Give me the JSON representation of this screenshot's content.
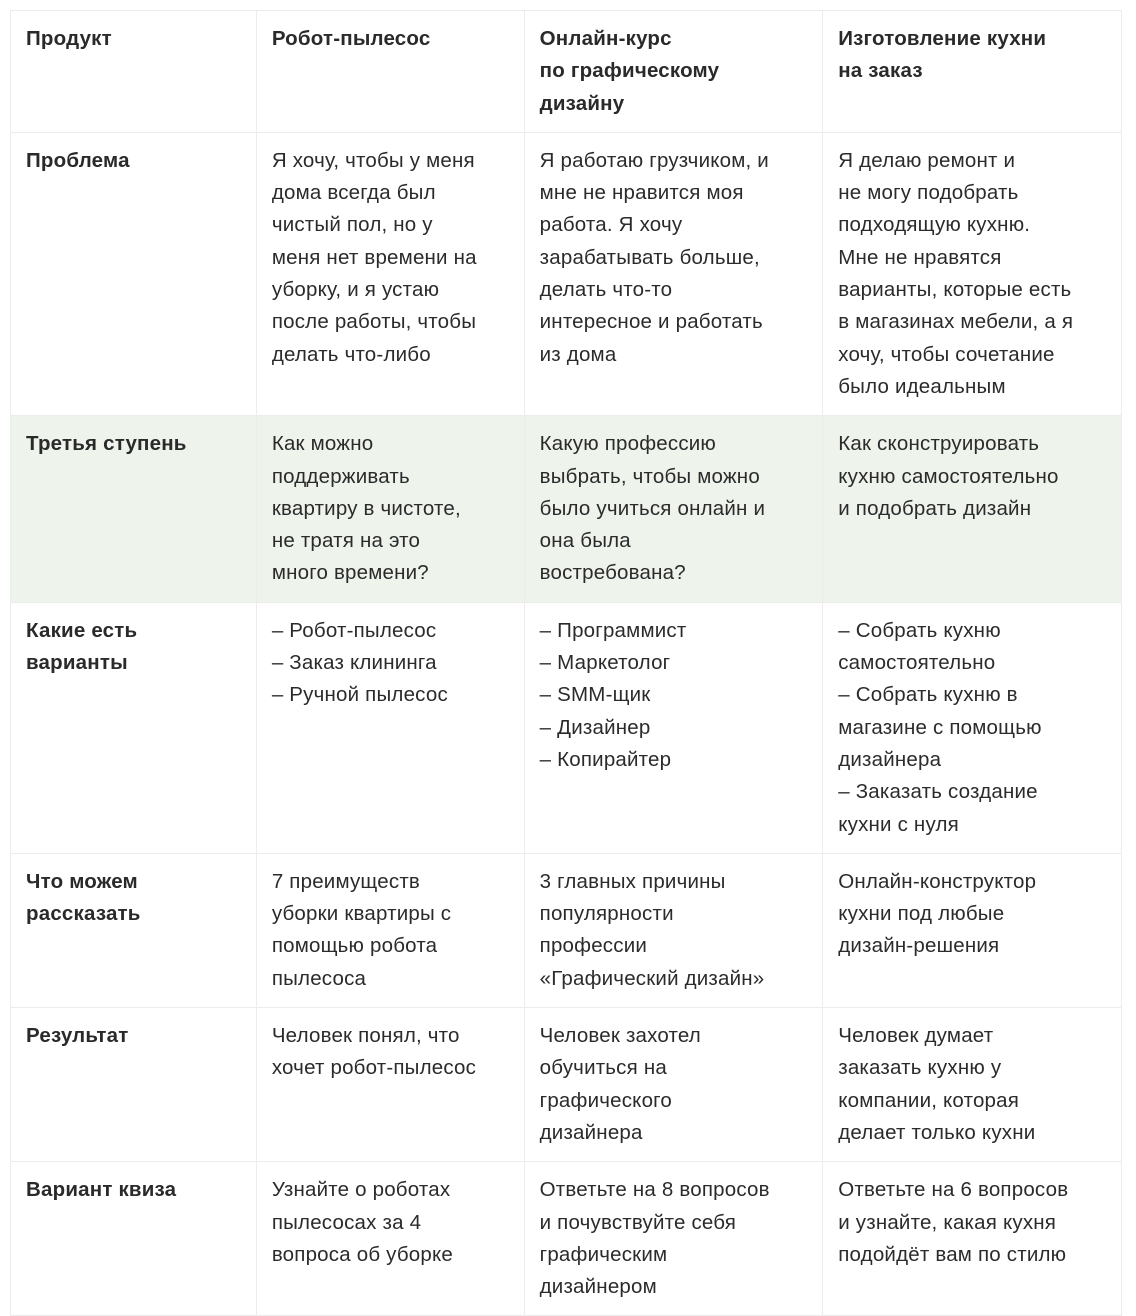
{
  "header": [
    "Продукт",
    "Робот-пылесос",
    "Онлайн-курс\nпо графическому\nдизайну",
    "Изготовление кухни\nна заказ"
  ],
  "rows": [
    {
      "label": "Проблема",
      "cells": [
        "Я хочу, чтобы у меня\nдома всегда был\nчистый пол, но у\nменя нет времени на\nуборку, и я устаю\nпосле работы, чтобы\nделать что-либо",
        "Я работаю грузчиком, и\nмне не нравится моя\nработа. Я хочу\nзарабатывать больше,\nделать что-то\nинтересное и работать\nиз дома",
        "Я делаю ремонт и\nне могу подобрать\nподходящую кухню.\nМне не нравятся\nварианты, которые есть\nв магазинах мебели, а я\nхочу, чтобы сочетание\nбыло идеальным"
      ]
    },
    {
      "label": "Третья ступень",
      "highlight": true,
      "cells": [
        "Как можно\nподдерживать\nквартиру в чистоте,\nне тратя на это\nмного времени?",
        "Какую профессию\nвыбрать, чтобы можно\nбыло учиться онлайн и\nона была\nвостребована?",
        "Как сконструировать\nкухню самостоятельно\nи подобрать дизайн"
      ]
    },
    {
      "label": "Какие есть\nварианты",
      "cells": [
        "– Робот-пылесос\n– Заказ клининга\n– Ручной пылесос",
        "– Программист\n– Маркетолог\n– SMM-щик\n– Дизайнер\n– Копирайтер",
        "– Собрать кухню\nсамостоятельно\n– Собрать кухню в\nмагазине с помощью\nдизайнера\n– Заказать создание\nкухни с нуля"
      ]
    },
    {
      "label": "Что можем\nрассказать",
      "cells": [
        "7 преимуществ\nуборки квартиры с\nпомощью робота\nпылесоса",
        "3 главных причины\nпопулярности\nпрофессии\n«Графический дизайн»",
        "Онлайн-конструктор\nкухни под любые\nдизайн-решения"
      ]
    },
    {
      "label": "Результат",
      "cells": [
        "Человек понял, что\nхочет робот-пылесос",
        "Человек захотел\nобучиться на\nграфического\nдизайнера",
        "Человек думает\nзаказать кухню у\nкомпании, которая\nделает только кухни"
      ]
    },
    {
      "label": "Вариант квиза",
      "cells": [
        "Узнайте о роботах\nпылесосах за 4\nвопроса об уборке",
        "Ответьте на 8 вопросов\nи почувствуйте себя\nграфическим\nдизайнером",
        "Ответьте на 6 вопросов\nи узнайте, какая кухня\nподойдёт вам по стилю"
      ]
    }
  ],
  "colors": {
    "highlight_row": "#eef3ec",
    "border": "#ececec",
    "text": "#2b2b2b"
  }
}
